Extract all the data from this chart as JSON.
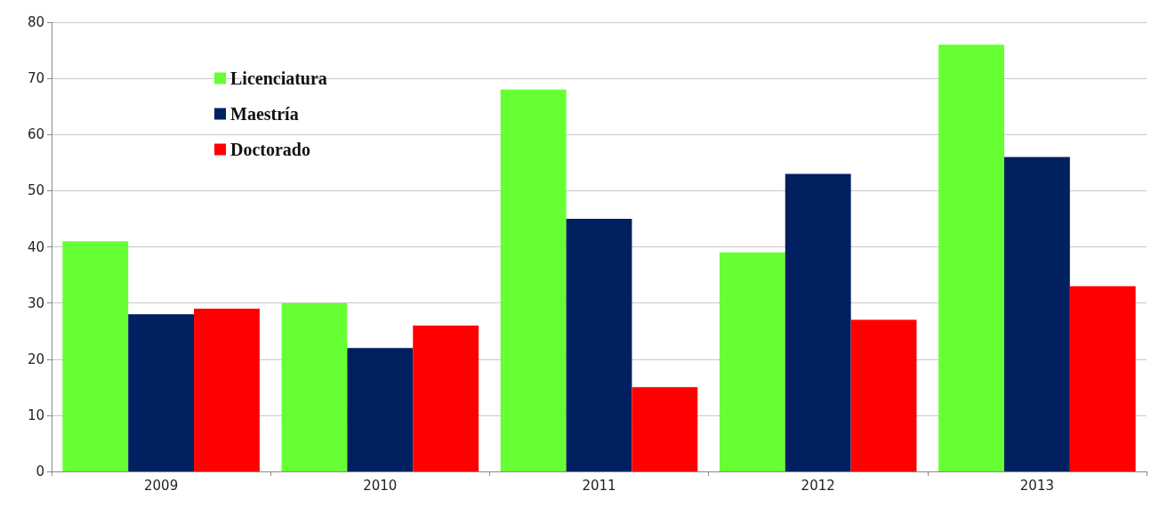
{
  "chart_data": {
    "type": "bar",
    "categories": [
      "2009",
      "2010",
      "2011",
      "2012",
      "2013"
    ],
    "series": [
      {
        "name": "Licenciatura",
        "color": "#66ff33",
        "values": [
          41,
          30,
          68,
          39,
          76
        ]
      },
      {
        "name": "Maestría",
        "color": "#002060",
        "values": [
          28,
          22,
          45,
          53,
          56
        ]
      },
      {
        "name": "Doctorado",
        "color": "#ff0000",
        "values": [
          29,
          26,
          15,
          27,
          33
        ]
      }
    ],
    "ylim": [
      0,
      80
    ],
    "yticks": [
      0,
      10,
      20,
      30,
      40,
      50,
      60,
      70,
      80
    ],
    "grid": "y",
    "legend": "top left"
  }
}
